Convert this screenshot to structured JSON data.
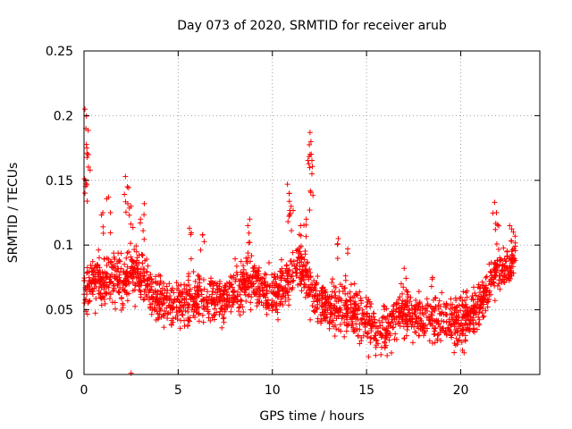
{
  "chart_data": {
    "type": "scatter",
    "title": "Day 073 of 2020, SRMTID for receiver arub",
    "xlabel": "GPS time / hours",
    "ylabel": "SRMTID / TECUs",
    "xlim": [
      0,
      24.2
    ],
    "ylim": [
      0,
      0.25
    ],
    "x_ticks": [
      0,
      5,
      10,
      15,
      20
    ],
    "x_tick_labels": [
      "0",
      "5",
      "10",
      "15",
      "20"
    ],
    "y_ticks": [
      0,
      0.05,
      0.1,
      0.15,
      0.2,
      0.25
    ],
    "y_tick_labels": [
      "0",
      "0.05",
      "0.1",
      "0.15",
      "0.2",
      "0.25"
    ],
    "grid": true,
    "marker": "plus",
    "color": "#ff0000",
    "series": [
      {
        "name": "SRMTID",
        "trend": [
          [
            0.0,
            0.065
          ],
          [
            0.5,
            0.075
          ],
          [
            1.0,
            0.07
          ],
          [
            1.5,
            0.075
          ],
          [
            2.0,
            0.072
          ],
          [
            2.5,
            0.08
          ],
          [
            3.0,
            0.078
          ],
          [
            3.5,
            0.065
          ],
          [
            4.0,
            0.058
          ],
          [
            4.5,
            0.055
          ],
          [
            5.0,
            0.055
          ],
          [
            5.5,
            0.058
          ],
          [
            6.0,
            0.06
          ],
          [
            6.5,
            0.058
          ],
          [
            7.0,
            0.06
          ],
          [
            7.5,
            0.055
          ],
          [
            8.0,
            0.062
          ],
          [
            8.5,
            0.072
          ],
          [
            9.0,
            0.075
          ],
          [
            9.5,
            0.065
          ],
          [
            10.0,
            0.062
          ],
          [
            10.5,
            0.07
          ],
          [
            11.0,
            0.075
          ],
          [
            11.5,
            0.085
          ],
          [
            12.0,
            0.07
          ],
          [
            12.5,
            0.055
          ],
          [
            13.0,
            0.052
          ],
          [
            13.5,
            0.05
          ],
          [
            14.0,
            0.05
          ],
          [
            14.5,
            0.048
          ],
          [
            15.0,
            0.042
          ],
          [
            15.5,
            0.032
          ],
          [
            16.0,
            0.035
          ],
          [
            16.5,
            0.042
          ],
          [
            17.0,
            0.048
          ],
          [
            17.5,
            0.045
          ],
          [
            18.0,
            0.042
          ],
          [
            18.5,
            0.042
          ],
          [
            19.0,
            0.04
          ],
          [
            19.5,
            0.038
          ],
          [
            20.0,
            0.04
          ],
          [
            20.5,
            0.045
          ],
          [
            21.0,
            0.055
          ],
          [
            21.5,
            0.07
          ],
          [
            22.0,
            0.08
          ],
          [
            22.5,
            0.085
          ],
          [
            22.9,
            0.09
          ]
        ],
        "spread": 0.018,
        "points_per_hour": 95,
        "x_range": [
          0,
          22.9
        ],
        "peaks": [
          [
            0.05,
            0.205
          ],
          [
            0.1,
            0.19
          ],
          [
            0.15,
            0.175
          ],
          [
            0.2,
            0.17
          ],
          [
            0.08,
            0.15
          ],
          [
            2.2,
            0.153
          ],
          [
            2.3,
            0.145
          ],
          [
            2.5,
            0.13
          ],
          [
            3.2,
            0.132
          ],
          [
            3.0,
            0.12
          ],
          [
            1.3,
            0.137
          ],
          [
            1.0,
            0.125
          ],
          [
            5.6,
            0.113
          ],
          [
            6.3,
            0.108
          ],
          [
            8.8,
            0.12
          ],
          [
            8.7,
            0.115
          ],
          [
            10.8,
            0.147
          ],
          [
            10.9,
            0.14
          ],
          [
            11.0,
            0.13
          ],
          [
            12.0,
            0.187
          ],
          [
            12.05,
            0.18
          ],
          [
            12.0,
            0.17
          ],
          [
            12.1,
            0.155
          ],
          [
            11.8,
            0.12
          ],
          [
            11.5,
            0.115
          ],
          [
            13.5,
            0.105
          ],
          [
            14.0,
            0.097
          ],
          [
            21.8,
            0.133
          ],
          [
            21.9,
            0.125
          ],
          [
            22.6,
            0.115
          ],
          [
            22.8,
            0.11
          ],
          [
            22.7,
            0.103
          ],
          [
            18.5,
            0.075
          ],
          [
            17.0,
            0.082
          ]
        ],
        "outliers": [
          [
            2.5,
            0.0
          ]
        ]
      }
    ]
  }
}
